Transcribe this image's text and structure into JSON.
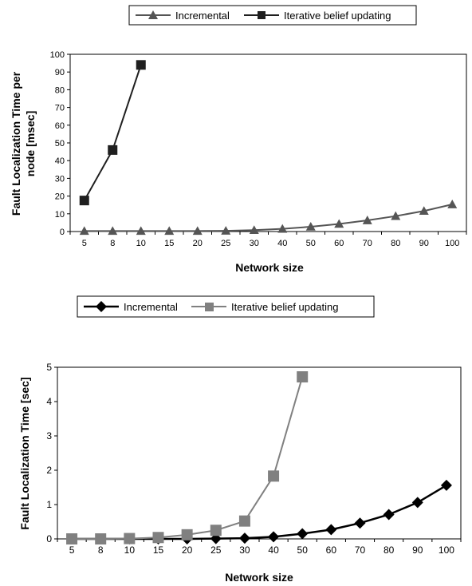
{
  "chart_data": [
    {
      "type": "line",
      "categories": [
        "5",
        "8",
        "10",
        "15",
        "20",
        "25",
        "30",
        "40",
        "50",
        "60",
        "70",
        "80",
        "90",
        "100"
      ],
      "series": [
        {
          "name": "Incremental",
          "marker": "triangle",
          "color": "#555555",
          "values": [
            0.3,
            0.3,
            0.3,
            0.3,
            0.3,
            0.4,
            0.8,
            1.5,
            2.7,
            4.3,
            6.3,
            8.7,
            11.6,
            15.3
          ]
        },
        {
          "name": "Iterative belief updating",
          "marker": "square",
          "color": "#1f1f1f",
          "values": [
            17.5,
            46,
            94,
            null,
            null,
            null,
            null,
            null,
            null,
            null,
            null,
            null,
            null,
            null
          ]
        }
      ],
      "xlabel": "Network size",
      "ylabel_line1": "Fault Localization Time per",
      "ylabel_line2": "node [msec]",
      "ylim": [
        0,
        100
      ],
      "yticks": [
        "0",
        "10",
        "20",
        "30",
        "40",
        "50",
        "60",
        "70",
        "80",
        "90",
        "100"
      ],
      "grid": false,
      "legend": "top"
    },
    {
      "type": "line",
      "categories": [
        "5",
        "8",
        "10",
        "15",
        "20",
        "25",
        "30",
        "40",
        "50",
        "60",
        "70",
        "80",
        "90",
        "100"
      ],
      "series": [
        {
          "name": "Incremental",
          "marker": "diamond",
          "color": "#000000",
          "values": [
            0.0,
            0.0,
            0.0,
            0.0,
            0.0,
            0.01,
            0.02,
            0.06,
            0.15,
            0.27,
            0.46,
            0.71,
            1.06,
            1.56
          ]
        },
        {
          "name": "Iterative belief updating",
          "marker": "square",
          "color": "#808080",
          "values": [
            0.0,
            0.0,
            0.01,
            0.04,
            0.12,
            0.25,
            0.52,
            1.83,
            4.72,
            null,
            null,
            null,
            null,
            null
          ]
        }
      ],
      "xlabel": "Network size",
      "ylabel": "Fault Localization Time [sec]",
      "ylim": [
        0,
        5
      ],
      "yticks": [
        "0",
        "1",
        "2",
        "3",
        "4",
        "5"
      ],
      "grid": false,
      "legend": "top"
    }
  ]
}
